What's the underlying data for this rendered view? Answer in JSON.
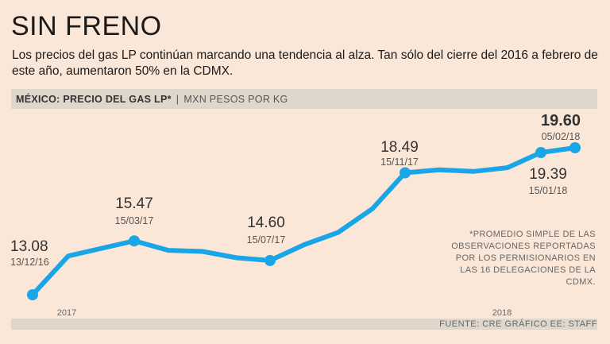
{
  "title": "SIN FRENO",
  "subtitle": "Los precios del gas LP continúan marcando una tendencia al alza. Tan sólo del cierre del 2016 a febrero de este año, aumentaron 50% en la CDMX.",
  "band": {
    "main": "MÉXICO: PRECIO DEL GAS LP*",
    "separator": "|",
    "unit": "MXN PESOS POR KG"
  },
  "note": "*PROMEDIO SIMPLE DE LAS OBSERVACIONES REPORTADAS POR LOS PERMISIONARIOS EN LAS 16 DELEGACIONES DE LA CDMX.",
  "source": "FUENTE: CRE   GRÁFICO EE: STAFF",
  "colors": {
    "line": "#1aa6e6",
    "background": "#fbe7d8",
    "band": "#dfd6cc"
  },
  "chart_data": {
    "type": "line",
    "title": "MÉXICO: PRECIO DEL GAS LP*",
    "ylabel": "MXN PESOS POR KG",
    "xlabel": "",
    "x_tick_labels": [
      "2017",
      "2018"
    ],
    "ylim": [
      12.5,
      20.5
    ],
    "series": [
      {
        "values": [
          {
            "x": "13/12/16",
            "y": 13.08
          },
          {
            "x": "01/17",
            "y": 14.8
          },
          {
            "x": "15/03/17",
            "y": 15.47
          },
          {
            "x": "04/17",
            "y": 15.05
          },
          {
            "x": "05/17",
            "y": 15.0
          },
          {
            "x": "06/17",
            "y": 14.72
          },
          {
            "x": "15/07/17",
            "y": 14.6
          },
          {
            "x": "08/17",
            "y": 15.3
          },
          {
            "x": "09/17",
            "y": 15.85
          },
          {
            "x": "10/17",
            "y": 16.9
          },
          {
            "x": "15/11/17",
            "y": 18.49
          },
          {
            "x": "12/17",
            "y": 18.62
          },
          {
            "x": "12/17b",
            "y": 18.55
          },
          {
            "x": "01/18",
            "y": 18.72
          },
          {
            "x": "15/01/18",
            "y": 19.39
          },
          {
            "x": "05/02/18",
            "y": 19.6
          }
        ]
      }
    ],
    "labeled_points": [
      {
        "value": "13.08",
        "date": "13/12/16",
        "idx": 0,
        "bold": false
      },
      {
        "value": "15.47",
        "date": "15/03/17",
        "idx": 2,
        "bold": false
      },
      {
        "value": "14.60",
        "date": "15/07/17",
        "idx": 6,
        "bold": false
      },
      {
        "value": "18.49",
        "date": "15/11/17",
        "idx": 10,
        "bold": false
      },
      {
        "value": "19.39",
        "date": "15/01/18",
        "idx": 14,
        "bold": false
      },
      {
        "value": "19.60",
        "date": "05/02/18",
        "idx": 15,
        "bold": true
      }
    ],
    "grid": false
  }
}
